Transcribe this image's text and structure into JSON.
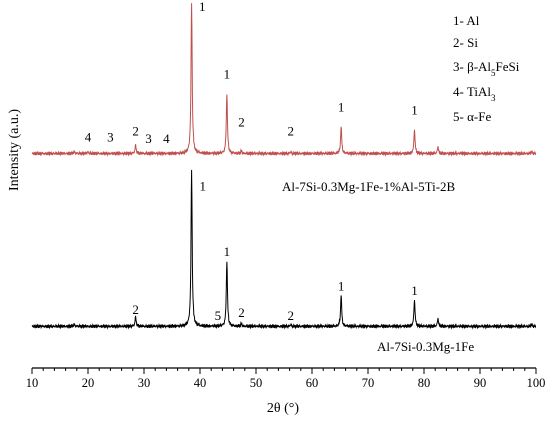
{
  "chart_data": {
    "type": "line",
    "xlabel": "2θ (°)",
    "ylabel": "Intensity (a.u.)",
    "xlim": [
      10,
      100
    ],
    "xticks": [
      "10",
      "20",
      "30",
      "40",
      "50",
      "60",
      "70",
      "80",
      "90",
      "100"
    ],
    "grid": false,
    "legend": {
      "placement": "top-right",
      "items": [
        {
          "num": "1-",
          "text": "Al"
        },
        {
          "num": "2-",
          "text": "Si"
        },
        {
          "num": "3-",
          "text": "β-Al",
          "sub": "5",
          "tail": "FeSi"
        },
        {
          "num": "4-",
          "text": "TiAl",
          "sub": "3",
          "tail": ""
        },
        {
          "num": "5-",
          "text": "α-Fe"
        }
      ]
    },
    "series": [
      {
        "name": "Al-7Si-0.3Mg-1Fe-1%Al-5Ti-2B",
        "color": "#c0504d",
        "baseline": 0.05,
        "peaks": [
          {
            "x": 38.5,
            "h": 1.0,
            "w": 0.12
          },
          {
            "x": 44.8,
            "h": 0.4,
            "w": 0.12
          },
          {
            "x": 65.2,
            "h": 0.18,
            "w": 0.12
          },
          {
            "x": 78.3,
            "h": 0.16,
            "w": 0.12
          },
          {
            "x": 28.5,
            "h": 0.055,
            "w": 0.12
          },
          {
            "x": 47.4,
            "h": 0.02,
            "w": 0.1
          },
          {
            "x": 56.2,
            "h": 0.012,
            "w": 0.1
          },
          {
            "x": 82.5,
            "h": 0.045,
            "w": 0.12
          },
          {
            "x": 99.2,
            "h": 0.012,
            "w": 0.12
          },
          {
            "x": 17.5,
            "h": 0.012,
            "w": 0.12
          },
          {
            "x": 20.0,
            "h": 0.01,
            "w": 0.12
          }
        ],
        "labels": [
          {
            "x": 20.0,
            "text": "4",
            "y": 0.13
          },
          {
            "x": 24.0,
            "text": "3",
            "y": 0.13
          },
          {
            "x": 28.5,
            "text": "2",
            "y": 0.17
          },
          {
            "x": 30.8,
            "text": "3",
            "y": 0.12
          },
          {
            "x": 34.0,
            "text": "4",
            "y": 0.12
          },
          {
            "x": 40.4,
            "text": "1",
            "y": 1.0
          },
          {
            "x": 44.8,
            "text": "1",
            "y": 0.55
          },
          {
            "x": 47.4,
            "text": "2",
            "y": 0.23
          },
          {
            "x": 56.2,
            "text": "2",
            "y": 0.17
          },
          {
            "x": 65.2,
            "text": "1",
            "y": 0.33
          },
          {
            "x": 78.3,
            "text": "1",
            "y": 0.31
          }
        ]
      },
      {
        "name": "Al-7Si-0.3Mg-1Fe",
        "color": "#000000",
        "baseline": 0.03,
        "peaks": [
          {
            "x": 38.5,
            "h": 1.0,
            "w": 0.12
          },
          {
            "x": 44.8,
            "h": 0.42,
            "w": 0.12
          },
          {
            "x": 65.2,
            "h": 0.2,
            "w": 0.12
          },
          {
            "x": 78.3,
            "h": 0.17,
            "w": 0.12
          },
          {
            "x": 28.5,
            "h": 0.06,
            "w": 0.12
          },
          {
            "x": 47.4,
            "h": 0.02,
            "w": 0.1
          },
          {
            "x": 56.2,
            "h": 0.012,
            "w": 0.1
          },
          {
            "x": 82.5,
            "h": 0.05,
            "w": 0.12
          },
          {
            "x": 99.2,
            "h": 0.012,
            "w": 0.12
          },
          {
            "x": 17.5,
            "h": 0.012,
            "w": 0.12
          }
        ],
        "labels": [
          {
            "x": 28.5,
            "text": "2",
            "y": 0.11
          },
          {
            "x": 40.5,
            "text": "1",
            "y": 0.9
          },
          {
            "x": 43.2,
            "text": "5",
            "y": 0.07
          },
          {
            "x": 44.8,
            "text": "1",
            "y": 0.48
          },
          {
            "x": 47.4,
            "text": "2",
            "y": 0.09
          },
          {
            "x": 56.2,
            "text": "2",
            "y": 0.07
          },
          {
            "x": 65.2,
            "text": "1",
            "y": 0.26
          },
          {
            "x": 78.3,
            "text": "1",
            "y": 0.23
          }
        ]
      }
    ]
  }
}
